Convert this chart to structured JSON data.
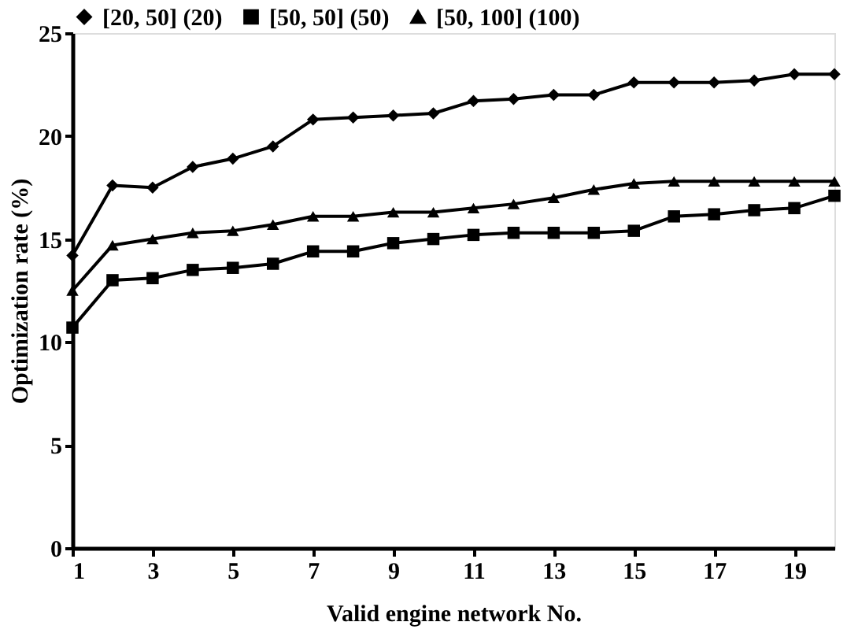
{
  "chart_data": {
    "type": "line",
    "xlabel": "Valid engine network No.",
    "ylabel": "Optimization rate (%)",
    "x": [
      1,
      2,
      3,
      4,
      5,
      6,
      7,
      8,
      9,
      10,
      11,
      12,
      13,
      14,
      15,
      16,
      17,
      18,
      19,
      20
    ],
    "series": [
      {
        "name": "[20, 50] (20)",
        "color": "#000000",
        "marker": "diamond",
        "values": [
          14.2,
          17.6,
          17.5,
          18.5,
          18.9,
          19.5,
          20.8,
          20.9,
          21.0,
          21.1,
          21.7,
          21.8,
          22.0,
          22.0,
          22.6,
          22.6,
          22.6,
          22.7,
          23.0,
          23.0
        ]
      },
      {
        "name": "[50, 50] (50)",
        "color": "#000000",
        "marker": "square",
        "values": [
          10.7,
          13.0,
          13.1,
          13.5,
          13.6,
          13.8,
          14.4,
          14.4,
          14.8,
          15.0,
          15.2,
          15.3,
          15.3,
          15.3,
          15.4,
          16.1,
          16.2,
          16.4,
          16.5,
          17.1
        ]
      },
      {
        "name": "[50, 100] (100)",
        "color": "#000000",
        "marker": "triangle",
        "values": [
          12.5,
          14.7,
          15.0,
          15.3,
          15.4,
          15.7,
          16.1,
          16.1,
          16.3,
          16.3,
          16.5,
          16.7,
          17.0,
          17.4,
          17.7,
          17.8,
          17.8,
          17.8,
          17.8,
          17.8
        ]
      }
    ],
    "xlim": [
      1,
      20
    ],
    "xticks": [
      1,
      3,
      5,
      7,
      9,
      11,
      13,
      15,
      17,
      19
    ],
    "ylim": [
      0,
      25
    ],
    "yticks": [
      0,
      5,
      10,
      15,
      20,
      25
    ],
    "grid": false,
    "legend": "top",
    "line_style": "solid"
  }
}
